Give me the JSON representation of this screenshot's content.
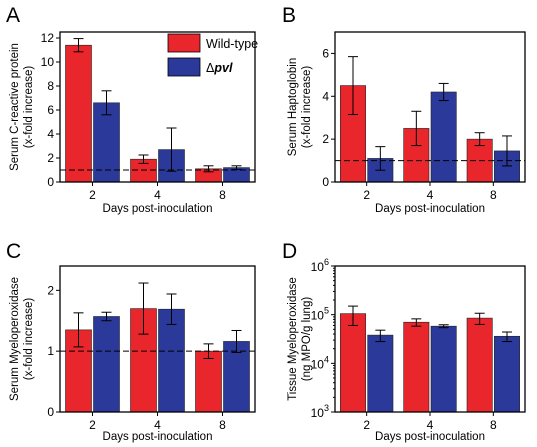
{
  "colors": {
    "wild_type": "#e8262b",
    "mutant": "#2b3a9a"
  },
  "legend": {
    "wild_type_label": "Wild-type",
    "mutant_prefix": "Δ",
    "mutant_name": "pvl"
  },
  "chart_data": [
    {
      "panel": "A",
      "type": "bar",
      "scale": "linear",
      "categories": [
        "2",
        "4",
        "8"
      ],
      "xlabel": "Days post-inoculation",
      "ylabel_lines": [
        "Serum C-reactive protein",
        "(x-fold increase)"
      ],
      "ylim": [
        0,
        12.5
      ],
      "yticks": [
        0,
        2,
        4,
        6,
        8,
        10,
        12
      ],
      "reference_line": 1,
      "series": [
        {
          "name": "Wild-type",
          "values": [
            11.4,
            1.9,
            1.1
          ],
          "errors": [
            0.55,
            0.35,
            0.25
          ]
        },
        {
          "name": "Δpvl",
          "values": [
            6.6,
            2.7,
            1.2
          ],
          "errors": [
            1.0,
            1.8,
            0.15
          ]
        }
      ]
    },
    {
      "panel": "B",
      "type": "bar",
      "scale": "linear",
      "categories": [
        "2",
        "4",
        "8"
      ],
      "xlabel": "Days post-inoculation",
      "ylabel_lines": [
        "Serum Haptoglobin",
        "(x-fold increase)"
      ],
      "ylim": [
        0,
        7
      ],
      "yticks": [
        0,
        2,
        4,
        6
      ],
      "reference_line": 1,
      "series": [
        {
          "name": "Wild-type",
          "values": [
            4.5,
            2.5,
            2.0
          ],
          "errors": [
            1.35,
            0.8,
            0.3
          ]
        },
        {
          "name": "Δpvl",
          "values": [
            1.1,
            4.2,
            1.45
          ],
          "errors": [
            0.55,
            0.4,
            0.7
          ]
        }
      ]
    },
    {
      "panel": "C",
      "type": "bar",
      "scale": "linear",
      "categories": [
        "2",
        "4",
        "8"
      ],
      "xlabel": "Days post-inoculation",
      "ylabel_lines": [
        "Serum Myeloperoxidase",
        "(x-fold increase)"
      ],
      "ylim": [
        0,
        2.4
      ],
      "yticks": [
        0,
        1,
        2
      ],
      "reference_line": 1,
      "series": [
        {
          "name": "Wild-type",
          "values": [
            1.35,
            1.7,
            1.0
          ],
          "errors": [
            0.28,
            0.42,
            0.12
          ]
        },
        {
          "name": "Δpvl",
          "values": [
            1.57,
            1.69,
            1.16
          ],
          "errors": [
            0.07,
            0.25,
            0.18
          ]
        }
      ]
    },
    {
      "panel": "D",
      "type": "bar",
      "scale": "log",
      "categories": [
        "2",
        "4",
        "8"
      ],
      "xlabel": "Days post-inoculation",
      "ylabel_lines": [
        "Tissue Myeloperoxidase",
        "(ng MPO/g lung)"
      ],
      "ylim": [
        1000,
        1000000
      ],
      "yticks": [
        {
          "base": "10",
          "exp": "3",
          "value": 1000
        },
        {
          "base": "10",
          "exp": "4",
          "value": 10000
        },
        {
          "base": "10",
          "exp": "5",
          "value": 100000
        },
        {
          "base": "10",
          "exp": "6",
          "value": 1000000
        }
      ],
      "series": [
        {
          "name": "Wild-type",
          "values": [
            105000,
            70000,
            85000
          ],
          "errors": [
            45000,
            12000,
            22000
          ]
        },
        {
          "name": "Δpvl",
          "values": [
            38000,
            58000,
            36000
          ],
          "errors": [
            10000,
            4000,
            8000
          ]
        }
      ]
    }
  ]
}
